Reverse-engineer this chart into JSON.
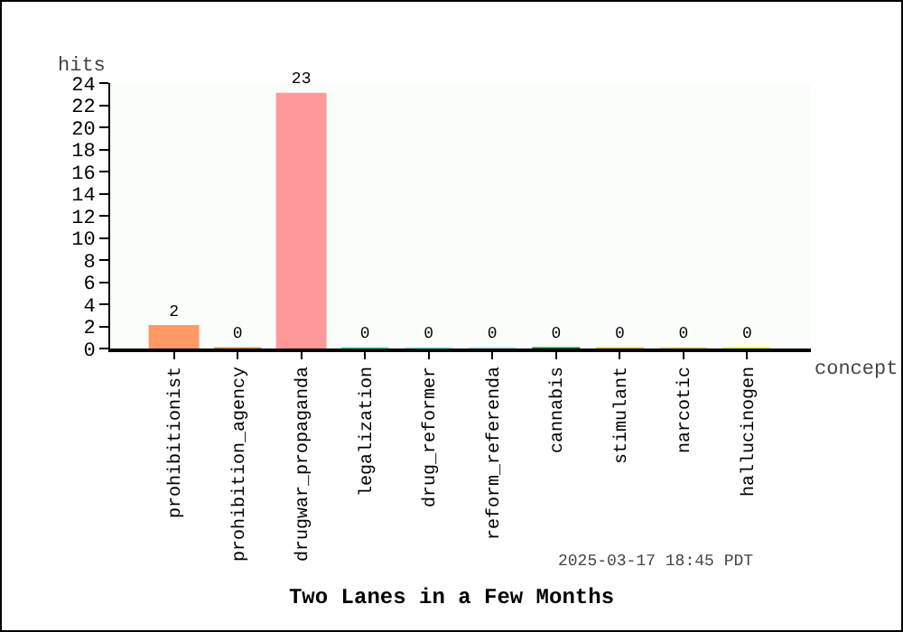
{
  "chart_data": {
    "type": "bar",
    "title": "Two Lanes in a Few Months",
    "categories": [
      "prohibitionist",
      "prohibition_agency",
      "drugwar_propaganda",
      "legalization",
      "drug_reformer",
      "reform_referenda",
      "cannabis",
      "stimulant",
      "narcotic",
      "hallucinogen"
    ],
    "values": [
      2,
      0,
      23,
      0,
      0,
      0,
      0,
      0,
      0,
      0
    ],
    "colors": [
      "#ff9966",
      "#f0a020",
      "#ff9999",
      "#40f0c0",
      "#80ffff",
      "#99eeff",
      "#109010",
      "#ffcc00",
      "#f0d070",
      "#ffff00"
    ],
    "xlabel": "concept",
    "ylabel": "hits",
    "ylim": [
      0,
      24
    ],
    "yticks": [
      0,
      2,
      4,
      6,
      8,
      10,
      12,
      14,
      16,
      18,
      20,
      22,
      24
    ],
    "data_labels": true,
    "grid": false,
    "legend": false,
    "annotations": [
      "2025-03-17 18:45 PDT"
    ]
  }
}
